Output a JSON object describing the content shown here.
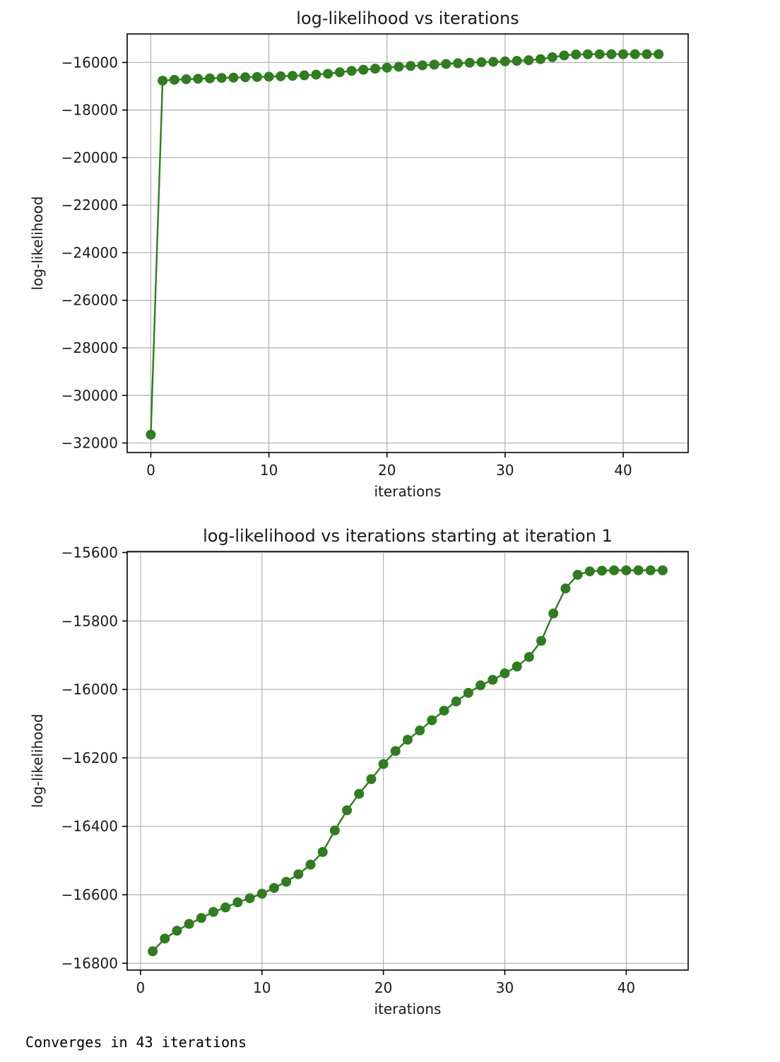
{
  "line_color": "#2e7d1e",
  "output_text": "Converges in 43 iterations",
  "chart_data": [
    {
      "type": "line",
      "title": "log-likelihood vs iterations",
      "xlabel": "iterations",
      "ylabel": "log-likelihood",
      "xlim": [
        -2,
        45.5
      ],
      "ylim": [
        -32400,
        -14800
      ],
      "xticks": [
        0,
        10,
        20,
        30,
        40
      ],
      "yticks": [
        -32000,
        -30000,
        -28000,
        -26000,
        -24000,
        -22000,
        -20000,
        -18000,
        -16000
      ],
      "tick_labels_x": [
        "0",
        "10",
        "20",
        "30",
        "40"
      ],
      "tick_labels_y": [
        "−32000",
        "−30000",
        "−28000",
        "−26000",
        "−24000",
        "−22000",
        "−20000",
        "−18000",
        "−16000"
      ],
      "grid": true,
      "marker": "circle",
      "x": [
        0,
        1,
        2,
        3,
        4,
        5,
        6,
        7,
        8,
        9,
        10,
        11,
        12,
        13,
        14,
        15,
        16,
        17,
        18,
        19,
        20,
        21,
        22,
        23,
        24,
        25,
        26,
        27,
        28,
        29,
        30,
        31,
        32,
        33,
        34,
        35,
        36,
        37,
        38,
        39,
        40,
        41,
        42,
        43
      ],
      "values": [
        -31650,
        -16765,
        -16728,
        -16705,
        -16685,
        -16668,
        -16650,
        -16637,
        -16622,
        -16610,
        -16597,
        -16580,
        -16562,
        -16540,
        -16512,
        -16475,
        -16412,
        -16353,
        -16305,
        -16262,
        -16218,
        -16180,
        -16147,
        -16120,
        -16090,
        -16062,
        -16035,
        -16010,
        -15988,
        -15972,
        -15953,
        -15933,
        -15905,
        -15858,
        -15778,
        -15705,
        -15665,
        -15655,
        -15653,
        -15652,
        -15652,
        -15652,
        -15652,
        -15652
      ]
    },
    {
      "type": "line",
      "title": "log-likelihood vs iterations starting at iteration 1",
      "xlabel": "iterations",
      "ylabel": "log-likelihood",
      "xlim": [
        -1.1,
        45.1
      ],
      "ylim": [
        -16820,
        -15597
      ],
      "xticks": [
        0,
        10,
        20,
        30,
        40
      ],
      "yticks": [
        -16800,
        -16600,
        -16400,
        -16200,
        -16000,
        -15800,
        -15600
      ],
      "tick_labels_x": [
        "0",
        "10",
        "20",
        "30",
        "40"
      ],
      "tick_labels_y": [
        "−16800",
        "−16600",
        "−16400",
        "−16200",
        "−16000",
        "−15800",
        "−15600"
      ],
      "grid": true,
      "marker": "circle",
      "x": [
        1,
        2,
        3,
        4,
        5,
        6,
        7,
        8,
        9,
        10,
        11,
        12,
        13,
        14,
        15,
        16,
        17,
        18,
        19,
        20,
        21,
        22,
        23,
        24,
        25,
        26,
        27,
        28,
        29,
        30,
        31,
        32,
        33,
        34,
        35,
        36,
        37,
        38,
        39,
        40,
        41,
        42,
        43
      ],
      "values": [
        -16765,
        -16728,
        -16705,
        -16685,
        -16668,
        -16650,
        -16637,
        -16622,
        -16610,
        -16597,
        -16580,
        -16562,
        -16540,
        -16512,
        -16475,
        -16412,
        -16353,
        -16305,
        -16262,
        -16218,
        -16180,
        -16147,
        -16120,
        -16090,
        -16062,
        -16035,
        -16010,
        -15988,
        -15972,
        -15953,
        -15933,
        -15905,
        -15858,
        -15778,
        -15705,
        -15665,
        -15655,
        -15653,
        -15652,
        -15652,
        -15652,
        -15652,
        -15652
      ]
    }
  ]
}
